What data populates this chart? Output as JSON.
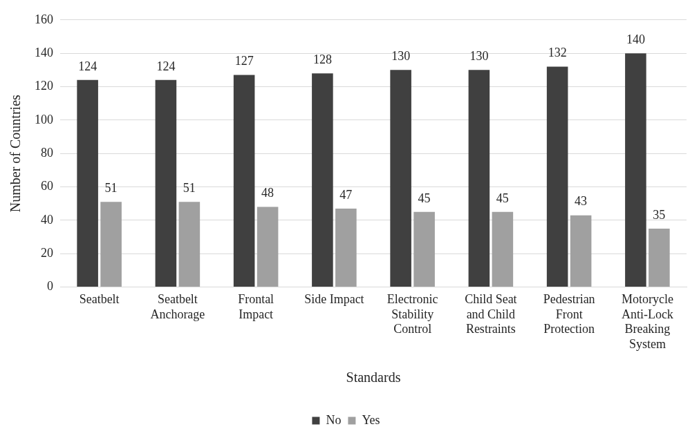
{
  "chart_data": {
    "type": "bar",
    "xlabel": "Standards",
    "ylabel": "Number of Countries",
    "categories": [
      "Seatbelt",
      "Seatbelt Anchorage",
      "Frontal Impact",
      "Side Impact",
      "Electronic Stability Control",
      "Child Seat and Child Restraints",
      "Pedestrian Front Protection",
      "Motorycle Anti-Lock Breaking System"
    ],
    "series": [
      {
        "name": "No",
        "color": "#404040",
        "values": [
          124,
          124,
          127,
          128,
          130,
          130,
          132,
          140
        ]
      },
      {
        "name": "Yes",
        "color": "#a0a0a0",
        "values": [
          51,
          51,
          48,
          47,
          45,
          45,
          43,
          35
        ]
      }
    ],
    "ylim": [
      0,
      160
    ],
    "yticks": [
      0,
      20,
      40,
      60,
      80,
      100,
      120,
      140,
      160
    ],
    "grid": "y",
    "legend": "bottom",
    "data_labels": true
  }
}
